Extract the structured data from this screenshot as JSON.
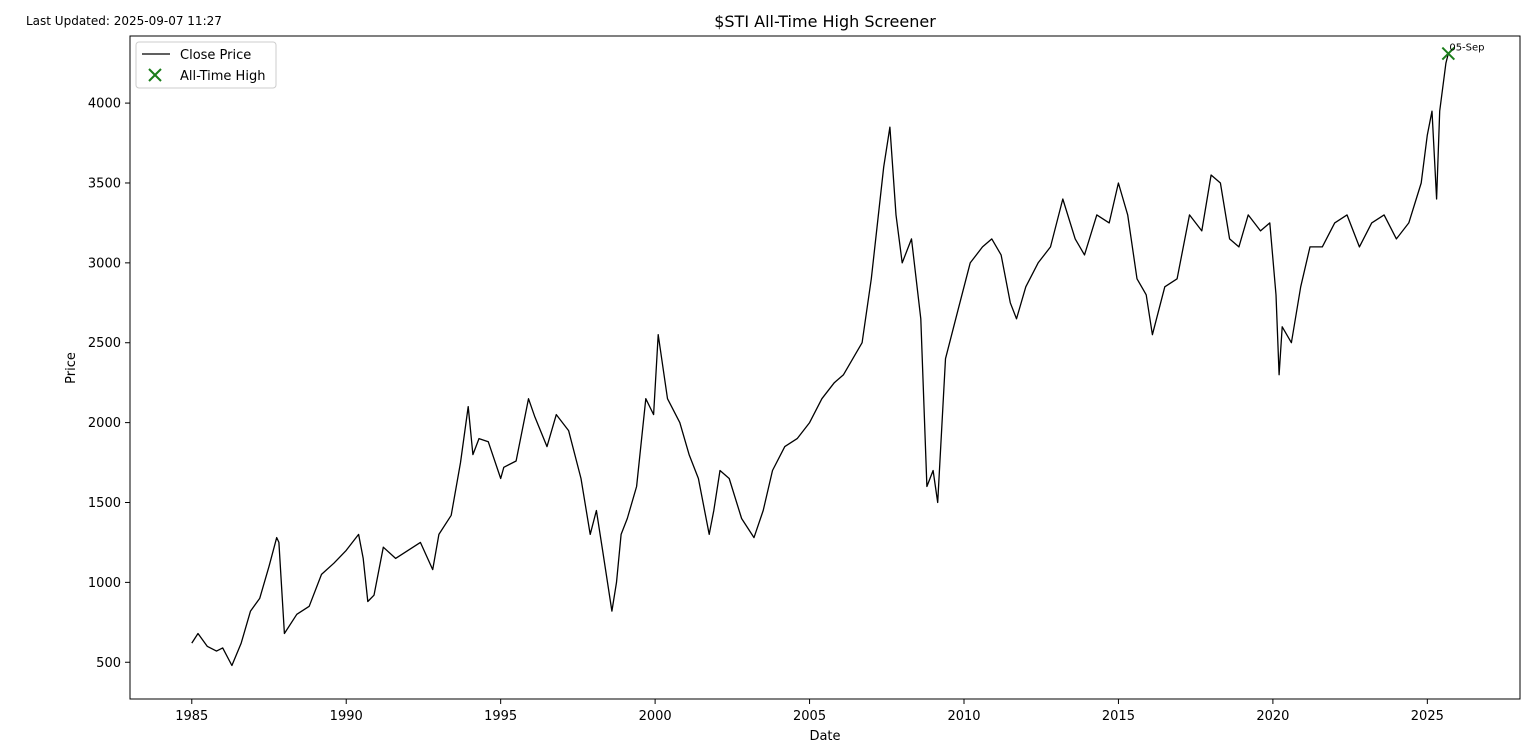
{
  "page": {
    "last_updated": "Last Updated: 2025-09-07 11:27"
  },
  "chart_data": {
    "type": "line",
    "title": "$STI All-Time High Screener",
    "xlabel": "Date",
    "ylabel": "Price",
    "xlim": [
      1983.0,
      2028.0
    ],
    "ylim": [
      270,
      4420
    ],
    "x_ticks": [
      1985,
      1990,
      1995,
      2000,
      2005,
      2010,
      2015,
      2020,
      2025
    ],
    "x_tick_labels": [
      "1985",
      "1990",
      "1995",
      "2000",
      "2005",
      "2010",
      "2015",
      "2020",
      "2025"
    ],
    "y_ticks": [
      500,
      1000,
      1500,
      2000,
      2500,
      3000,
      3500,
      4000
    ],
    "y_tick_labels": [
      "500",
      "1000",
      "1500",
      "2000",
      "2500",
      "3000",
      "3500",
      "4000"
    ],
    "grid": false,
    "legend_position": "top-left",
    "series": [
      {
        "name": "Close Price",
        "type": "line",
        "color": "#000000",
        "x": [
          1985.0,
          1985.2,
          1985.5,
          1985.8,
          1986.0,
          1986.3,
          1986.6,
          1986.9,
          1987.2,
          1987.5,
          1987.75,
          1987.82,
          1988.0,
          1988.4,
          1988.8,
          1989.2,
          1989.6,
          1990.0,
          1990.4,
          1990.55,
          1990.7,
          1990.9,
          1991.2,
          1991.6,
          1992.0,
          1992.4,
          1992.8,
          1993.0,
          1993.4,
          1993.7,
          1993.95,
          1994.1,
          1994.3,
          1994.6,
          1995.0,
          1995.1,
          1995.5,
          1995.9,
          1996.1,
          1996.5,
          1996.8,
          1997.2,
          1997.6,
          1997.9,
          1998.1,
          1998.3,
          1998.6,
          1998.75,
          1998.9,
          1999.1,
          1999.4,
          1999.7,
          1999.95,
          2000.1,
          2000.4,
          2000.8,
          2001.1,
          2001.4,
          2001.75,
          2001.9,
          2002.1,
          2002.4,
          2002.8,
          2003.2,
          2003.5,
          2003.8,
          2004.2,
          2004.6,
          2005.0,
          2005.4,
          2005.8,
          2006.1,
          2006.4,
          2006.7,
          2007.0,
          2007.4,
          2007.6,
          2007.8,
          2008.0,
          2008.3,
          2008.6,
          2008.8,
          2009.0,
          2009.15,
          2009.4,
          2009.8,
          2010.2,
          2010.6,
          2010.9,
          2011.2,
          2011.5,
          2011.7,
          2012.0,
          2012.4,
          2012.8,
          2013.2,
          2013.6,
          2013.9,
          2014.3,
          2014.7,
          2015.0,
          2015.3,
          2015.6,
          2015.9,
          2016.1,
          2016.5,
          2016.9,
          2017.3,
          2017.7,
          2018.0,
          2018.3,
          2018.6,
          2018.9,
          2019.2,
          2019.6,
          2019.9,
          2020.1,
          2020.2,
          2020.3,
          2020.6,
          2020.9,
          2021.2,
          2021.6,
          2022.0,
          2022.4,
          2022.8,
          2023.2,
          2023.6,
          2024.0,
          2024.4,
          2024.8,
          2025.0,
          2025.15,
          2025.3,
          2025.4,
          2025.6,
          2025.68
        ],
        "values": [
          620,
          680,
          600,
          570,
          590,
          480,
          620,
          820,
          900,
          1100,
          1280,
          1250,
          680,
          800,
          850,
          1050,
          1120,
          1200,
          1300,
          1150,
          880,
          920,
          1220,
          1150,
          1200,
          1250,
          1080,
          1300,
          1420,
          1750,
          2100,
          1800,
          1900,
          1880,
          1650,
          1720,
          1760,
          2150,
          2040,
          1850,
          2050,
          1950,
          1650,
          1300,
          1450,
          1200,
          820,
          1000,
          1300,
          1400,
          1600,
          2150,
          2050,
          2550,
          2150,
          2000,
          1800,
          1650,
          1300,
          1450,
          1700,
          1650,
          1400,
          1280,
          1450,
          1700,
          1850,
          1900,
          2000,
          2150,
          2250,
          2300,
          2400,
          2500,
          2900,
          3600,
          3850,
          3300,
          3000,
          3150,
          2650,
          1600,
          1700,
          1500,
          2400,
          2700,
          3000,
          3100,
          3150,
          3050,
          2750,
          2650,
          2850,
          3000,
          3100,
          3400,
          3150,
          3050,
          3300,
          3250,
          3500,
          3300,
          2900,
          2800,
          2550,
          2850,
          2900,
          3300,
          3200,
          3550,
          3500,
          3150,
          3100,
          3300,
          3200,
          3250,
          2800,
          2300,
          2600,
          2500,
          2850,
          3100,
          3100,
          3250,
          3300,
          3100,
          3250,
          3300,
          3150,
          3250,
          3500,
          3800,
          3950,
          3400,
          3950,
          4250,
          4310
        ]
      },
      {
        "name": "All-Time High",
        "type": "scatter",
        "color": "#1a7d1a",
        "marker": "x",
        "x": [
          2025.68
        ],
        "values": [
          4310
        ],
        "labels": [
          "05-Sep"
        ]
      }
    ]
  }
}
